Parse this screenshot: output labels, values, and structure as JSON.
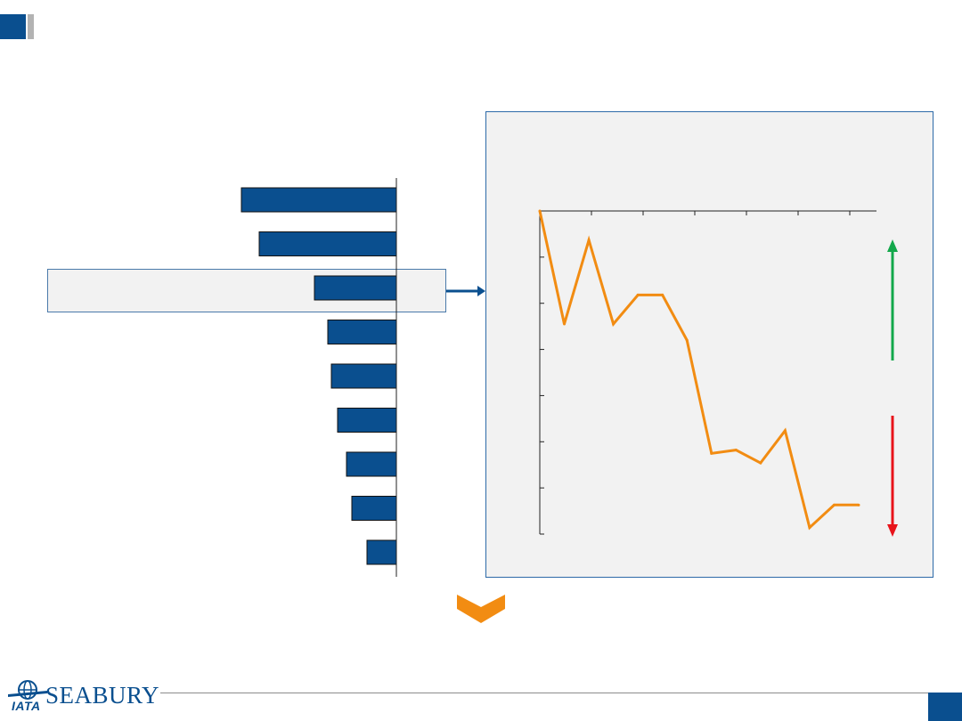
{
  "footer": {
    "logo_left_text": "IATA",
    "logo_right_text": "SEABURY"
  },
  "colors": {
    "bar_fill": "#0a4f8f",
    "line_stroke": "#f28c12",
    "up_arrow": "#13a84b",
    "down_arrow": "#e8141b",
    "panel_bg": "#f2f2f2",
    "chevron": "#f28c12"
  },
  "chart_data": [
    {
      "type": "bar",
      "orientation": "horizontal",
      "categories": [
        "",
        "",
        "",
        "",
        "",
        "",
        "",
        "",
        ""
      ],
      "values": [
        174,
        154,
        92,
        77,
        73,
        66,
        56,
        50,
        33
      ],
      "highlighted_index": 2,
      "title": "",
      "xlabel": "",
      "ylabel": ""
    },
    {
      "type": "line",
      "x": [
        0,
        1,
        2,
        3,
        4,
        5,
        6,
        7,
        8,
        9,
        10,
        11,
        12,
        13
      ],
      "series": [
        {
          "values": [
            100,
            65,
            91,
            65,
            74,
            74,
            60,
            25,
            26,
            22,
            32,
            2,
            9,
            9
          ]
        }
      ],
      "title": "",
      "xlabel": "",
      "ylabel": "",
      "ylim": [
        0,
        100
      ],
      "y_ticks": 8,
      "x_ticks": 7,
      "grid": false,
      "annotations": [
        "up-arrow",
        "down-arrow"
      ]
    }
  ]
}
